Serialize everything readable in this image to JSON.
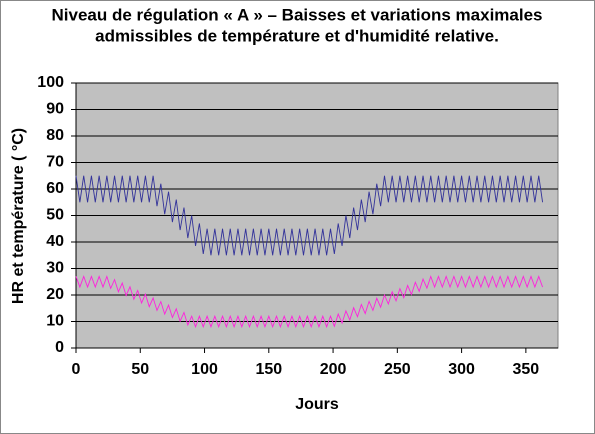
{
  "chart_data": {
    "type": "line",
    "title_lines": [
      "Niveau de régulation « A » – Baisses et variations maximales",
      "admissibles de température et d'humidité relative."
    ],
    "x_label": "Jours",
    "y_label": "HR et température ( °C)",
    "xlim": [
      0,
      375
    ],
    "ylim": [
      0,
      100
    ],
    "xticks": [
      0,
      50,
      100,
      150,
      200,
      250,
      300,
      350
    ],
    "yticks": [
      0,
      10,
      20,
      30,
      40,
      50,
      60,
      70,
      80,
      90,
      100
    ],
    "grid": true,
    "x": [
      0,
      3,
      6,
      9,
      12,
      15,
      18,
      21,
      24,
      27,
      30,
      33,
      36,
      39,
      42,
      45,
      48,
      51,
      54,
      57,
      60,
      63,
      66,
      69,
      72,
      75,
      78,
      81,
      84,
      87,
      90,
      93,
      96,
      99,
      102,
      105,
      108,
      111,
      114,
      117,
      120,
      123,
      126,
      129,
      132,
      135,
      138,
      141,
      144,
      147,
      150,
      153,
      156,
      159,
      162,
      165,
      168,
      171,
      174,
      177,
      180,
      183,
      186,
      189,
      192,
      195,
      198,
      201,
      204,
      207,
      210,
      213,
      216,
      219,
      222,
      225,
      228,
      231,
      234,
      237,
      240,
      243,
      246,
      249,
      252,
      255,
      258,
      261,
      264,
      267,
      270,
      273,
      276,
      279,
      282,
      285,
      288,
      291,
      294,
      297,
      300,
      303,
      306,
      309,
      312,
      315,
      318,
      321,
      324,
      327,
      330,
      333,
      336,
      339,
      342,
      345,
      348,
      351,
      354,
      357,
      360,
      363
    ],
    "series": [
      {
        "color": "#33339a",
        "values": [
          65,
          55,
          65,
          55,
          65,
          55,
          65,
          55,
          65,
          55,
          65,
          55,
          65,
          55,
          65,
          55,
          65,
          55,
          65,
          55,
          65,
          53.5,
          62,
          50.5,
          59,
          47.5,
          56,
          44.5,
          53,
          41.5,
          50,
          38.5,
          47,
          35.5,
          45,
          35,
          45,
          35,
          45,
          35,
          45,
          35,
          45,
          35,
          45,
          35,
          45,
          35,
          45,
          35,
          45,
          35,
          45,
          35,
          45,
          35,
          45,
          35,
          45,
          35,
          45,
          35,
          45,
          35,
          45,
          35,
          45,
          35.5,
          47,
          38.5,
          50,
          41.5,
          53,
          44.5,
          56,
          47.5,
          59,
          50.5,
          62,
          53.5,
          65,
          55,
          65,
          55,
          65,
          55,
          65,
          55,
          65,
          55,
          65,
          55,
          65,
          55,
          65,
          55,
          65,
          55,
          65,
          55,
          65,
          55,
          65,
          55,
          65,
          55,
          65,
          55,
          65,
          55,
          65,
          55,
          65,
          55,
          65,
          55,
          65,
          55,
          65,
          55,
          65,
          55
        ]
      },
      {
        "color": "#ff22dd",
        "values": [
          27,
          23,
          27,
          23,
          27,
          23,
          27,
          23,
          27,
          22.5,
          25.8,
          21.2,
          24.5,
          19.8,
          23.1,
          18.4,
          21.7,
          17,
          20.3,
          15.6,
          18.9,
          14.2,
          17.5,
          12.8,
          16.2,
          11.5,
          14.8,
          10.1,
          13.4,
          8.7,
          12,
          8,
          12,
          8,
          12,
          8,
          12,
          8,
          12,
          8,
          12,
          8,
          12,
          8,
          12,
          8,
          12,
          8,
          12,
          8,
          12,
          8,
          12,
          8,
          12,
          8,
          12,
          8,
          12,
          8,
          12,
          8,
          12,
          8,
          12,
          8,
          12,
          8.2,
          12.8,
          9.4,
          14,
          10.6,
          15.2,
          11.8,
          16.4,
          13,
          17.6,
          14.2,
          18.8,
          15.4,
          20,
          16.6,
          21.2,
          17.8,
          22.4,
          19,
          23.6,
          20.2,
          24.8,
          21.4,
          26,
          22.6,
          27,
          23,
          27,
          23,
          27,
          23,
          27,
          23,
          27,
          23,
          27,
          23,
          27,
          23,
          27,
          23,
          27,
          23,
          27,
          23,
          27,
          23,
          27,
          23,
          27,
          23,
          27,
          23,
          27,
          23
        ]
      }
    ]
  }
}
